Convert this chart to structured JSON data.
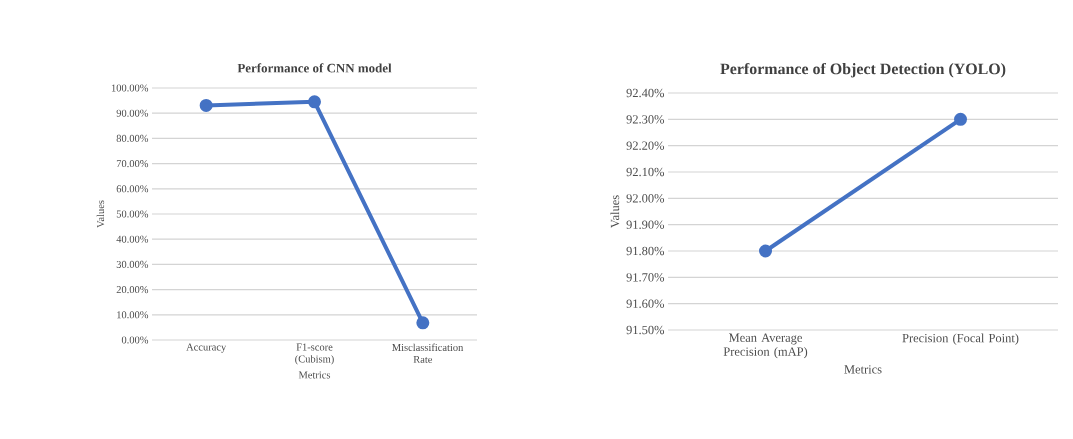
{
  "chart_data": [
    {
      "type": "line",
      "title": "Performance of CNN model",
      "xlabel": "Metrics",
      "ylabel": "Values",
      "categories": [
        "Accuracy",
        "F1-score (Cubism)",
        "Misclassification Rate"
      ],
      "series": [
        {
          "color": "#4472c4",
          "values": [
            93.1,
            94.5,
            6.8
          ]
        }
      ],
      "ylim": [
        0,
        100
      ],
      "yticks": [
        {
          "value": 0,
          "label": "0.00%"
        },
        {
          "value": 10,
          "label": "10.00%"
        },
        {
          "value": 20,
          "label": "20.00%"
        },
        {
          "value": 30,
          "label": "30.00%"
        },
        {
          "value": 40,
          "label": "40.00%"
        },
        {
          "value": 50,
          "label": "50.00%"
        },
        {
          "value": 60,
          "label": "60.00%"
        },
        {
          "value": 70,
          "label": "70.00%"
        },
        {
          "value": 80,
          "label": "80.00%"
        },
        {
          "value": 90,
          "label": "90.00%"
        },
        {
          "value": 100,
          "label": "100.00%"
        }
      ],
      "grid": "y",
      "marker": "circle",
      "line_style": "solid"
    },
    {
      "type": "line",
      "title": "Performance of Object Detection (YOLO)",
      "xlabel": "Metrics",
      "ylabel": "Values",
      "categories": [
        "Mean Average Precision (mAP)",
        "Precision (Focal Point)"
      ],
      "series": [
        {
          "color": "#4472c4",
          "values": [
            91.8,
            92.3
          ]
        }
      ],
      "ylim": [
        91.5,
        92.4
      ],
      "yticks": [
        {
          "value": 91.5,
          "label": "91.50%"
        },
        {
          "value": 91.6,
          "label": "91.60%"
        },
        {
          "value": 91.7,
          "label": "91.70%"
        },
        {
          "value": 91.8,
          "label": "91.80%"
        },
        {
          "value": 91.9,
          "label": "91.90%"
        },
        {
          "value": 92.0,
          "label": "92.00%"
        },
        {
          "value": 92.1,
          "label": "92.10%"
        },
        {
          "value": 92.2,
          "label": "92.20%"
        },
        {
          "value": 92.3,
          "label": "92.30%"
        },
        {
          "value": 92.4,
          "label": "92.40%"
        }
      ],
      "grid": "y",
      "marker": "circle",
      "line_style": "solid"
    }
  ]
}
